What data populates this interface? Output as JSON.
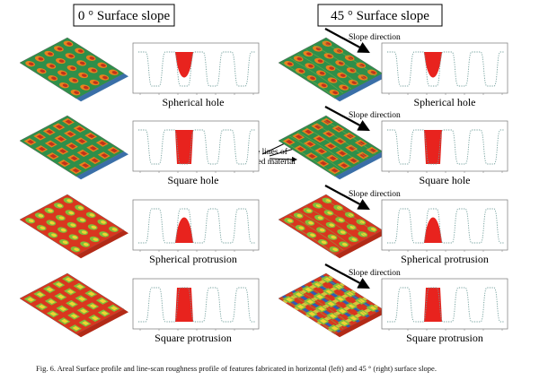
{
  "headers": {
    "left": "0 ° Surface slope",
    "right": "45 ° Surface slope"
  },
  "rows": [
    {
      "left_caption": "Spherical hole",
      "right_caption": "Spherical hole",
      "right_note": "Slope direction"
    },
    {
      "left_caption": "Square hole",
      "right_caption": "Square hole",
      "right_note": "Slope direction"
    },
    {
      "left_caption": "Spherical protrusion",
      "right_caption": "Spherical protrusion",
      "right_note": "Slope direction"
    },
    {
      "left_caption": "Square protrusion",
      "right_caption": "Square protrusion",
      "right_note": "Slope direction"
    }
  ],
  "trace_note": [
    "Trace lines of",
    "slipped material"
  ],
  "caption": "Fig.  6. Areal Surface profile and line-scan roughness profile of features fabricated in horizontal (left) and 45 ° (right) surface slope."
}
